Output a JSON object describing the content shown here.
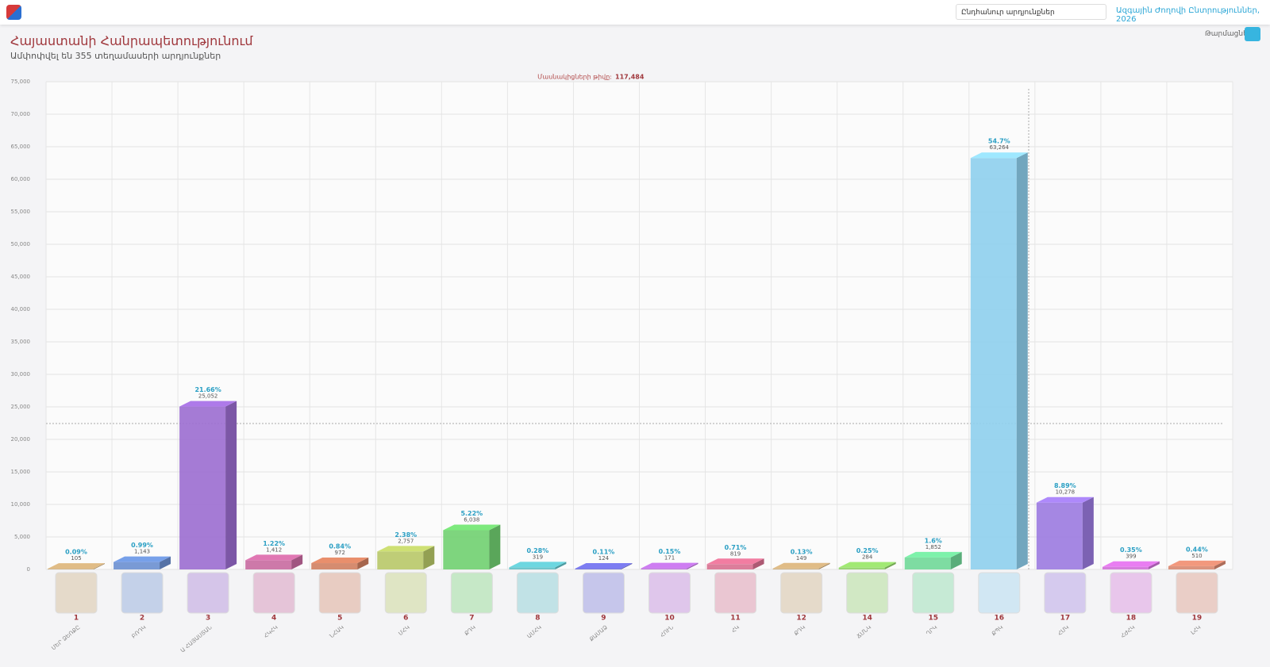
{
  "header": {
    "search_placeholder": "Ընդհանուր արդյունքներ",
    "election_link": "Ազգային Ժողովի Ընտրություններ, 2026",
    "refresh": "Թարմացնել"
  },
  "chart_data": {
    "type": "bar",
    "title": "Հայաստանի Հանրապետությունում",
    "subtitle": "Ամփոփվել են 355 տեղամասերի արդյունքներ",
    "annotation": "Մասնակիցների թիվը:",
    "participants": 117484,
    "participants_label": "117,484",
    "categories": [
      "1",
      "2",
      "3",
      "4",
      "5",
      "6",
      "7",
      "8",
      "9",
      "10",
      "11",
      "12",
      "14",
      "15",
      "16",
      "17",
      "18",
      "19"
    ],
    "category_labels": [
      "ՄԵՐ ՁԵՌՔԸ",
      "ԲՌԴԿ",
      "Ա ՀԱՅԱՍՏԱՆ",
      "ՀԿՀԿ",
      "ՆՀԱԿ",
      "ՄՀԿ",
      "ՔԴԿ",
      "ԱՄՀԿ",
      "ՔԱՄԱՁ",
      "ՀՈՒՆ",
      "ՀԿ",
      "ՔԴԿ",
      "ՃՄՆԿ",
      "ՂՐԿ",
      "ՔՊԿ",
      "ՀՄԿ",
      "ՀԺՀԿ",
      "ԼՀԿ"
    ],
    "values": [
      105,
      1143,
      25052,
      1412,
      972,
      2757,
      6038,
      319,
      124,
      171,
      819,
      149,
      284,
      1852,
      63264,
      10278,
      399,
      510
    ],
    "value_labels": [
      "105",
      "1,143",
      "25,052",
      "1,412",
      "972",
      "2,757",
      "6,038",
      "319",
      "124",
      "171",
      "819",
      "149",
      "284",
      "1,852",
      "63,264",
      "10,278",
      "399",
      "510"
    ],
    "shares": [
      0.09,
      0.99,
      21.66,
      1.22,
      0.84,
      2.38,
      5.22,
      0.28,
      0.11,
      0.15,
      0.71,
      0.13,
      0.25,
      1.6,
      54.7,
      8.89,
      0.35,
      0.44
    ],
    "share_labels": [
      "0.09%",
      "0.99%",
      "21.66%",
      "1.22%",
      "0.84%",
      "2.38%",
      "5.22%",
      "0.28%",
      "0.11%",
      "0.15%",
      "0.71%",
      "0.13%",
      "0.25%",
      "1.6%",
      "54.7%",
      "8.89%",
      "0.35%",
      "0.44%"
    ],
    "colors": [
      "#c8a878",
      "#6a8fd0",
      "#9b6dd0",
      "#c86aa0",
      "#d08060",
      "#b8c868",
      "#70d070",
      "#60c0c8",
      "#7070d8",
      "#b870d8",
      "#d87090",
      "#c8a878",
      "#90d068",
      "#70d898",
      "#8ecfed",
      "#9b7ae0",
      "#d070d8",
      "#d88870"
    ],
    "ylim": [
      0,
      75000
    ],
    "yticks": [
      0,
      {
        "value": 5000,
        "label": "5,000"
      },
      {
        "value": 10000,
        "label": "10,000"
      },
      {
        "value": 15000,
        "label": "15,000"
      },
      {
        "value": 20000,
        "label": "20,000"
      },
      {
        "value": 25000,
        "label": "25,000"
      },
      {
        "value": 30000,
        "label": "30,000"
      },
      {
        "value": 35000,
        "label": "35,000"
      },
      {
        "value": 40000,
        "label": "40,000"
      },
      {
        "value": 45000,
        "label": "45,000"
      },
      {
        "value": 50000,
        "label": "50,000"
      },
      {
        "value": 55000,
        "label": "55,000"
      },
      {
        "value": 60000,
        "label": "60,000"
      },
      {
        "value": 65000,
        "label": "65,000"
      },
      {
        "value": 70000,
        "label": "70,000"
      },
      {
        "value": 75000,
        "label": "75,000"
      }
    ],
    "grid": true
  }
}
